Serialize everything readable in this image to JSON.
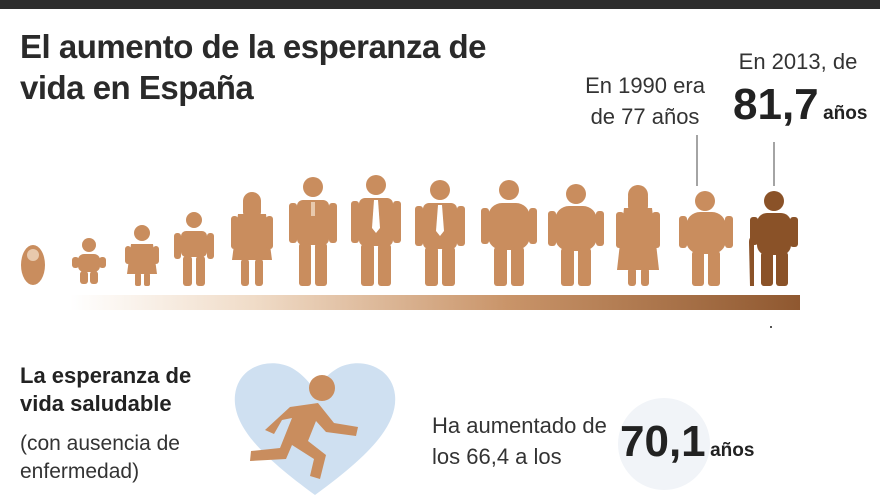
{
  "title": "El aumento de la esperanza de vida en España",
  "note_1990": "En 1990 era de 77 años",
  "note_2013_prefix": "En 2013, de",
  "note_2013_value": "81,7",
  "note_2013_unit": "años",
  "healthy": {
    "title": "La esperanza de vida saludable",
    "note": "(con ausencia de enfermedad)",
    "text": "Ha aumentado de los 66,4 a los",
    "value": "70,1",
    "unit": "años"
  },
  "colors": {
    "figure": "#c98d5e",
    "figure_last": "#8a5228",
    "heart": "#cfe0f1",
    "runner": "#c98d5e"
  }
}
